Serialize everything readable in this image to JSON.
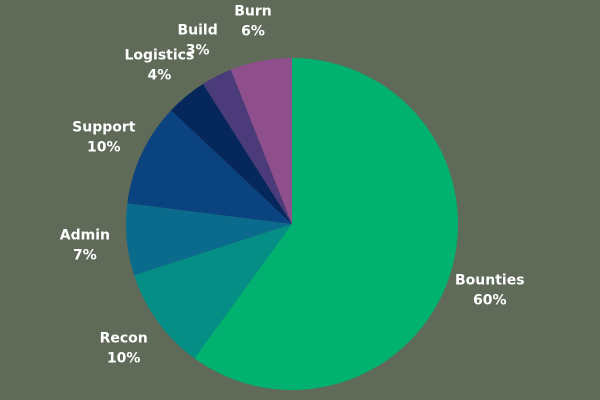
{
  "chart_data": {
    "type": "pie",
    "title": "",
    "start": "top, clockwise",
    "slices": [
      {
        "label": "Bounties",
        "value": 60,
        "value_label": "60%",
        "color": "#00b16f"
      },
      {
        "label": "Recon",
        "value": 10,
        "value_label": "10%",
        "color": "#048e86"
      },
      {
        "label": "Admin",
        "value": 7,
        "value_label": "7%",
        "color": "#0a6b8c"
      },
      {
        "label": "Support",
        "value": 10,
        "value_label": "10%",
        "color": "#0a4380"
      },
      {
        "label": "Logistics",
        "value": 4,
        "value_label": "4%",
        "color": "#06275c"
      },
      {
        "label": "Build",
        "value": 3,
        "value_label": "3%",
        "color": "#4b3b7a"
      },
      {
        "label": "Burn",
        "value": 6,
        "value_label": "6%",
        "color": "#8f4f8d"
      }
    ]
  },
  "colors": {
    "background": "#5f6b58",
    "label_text": "#ffffff"
  }
}
